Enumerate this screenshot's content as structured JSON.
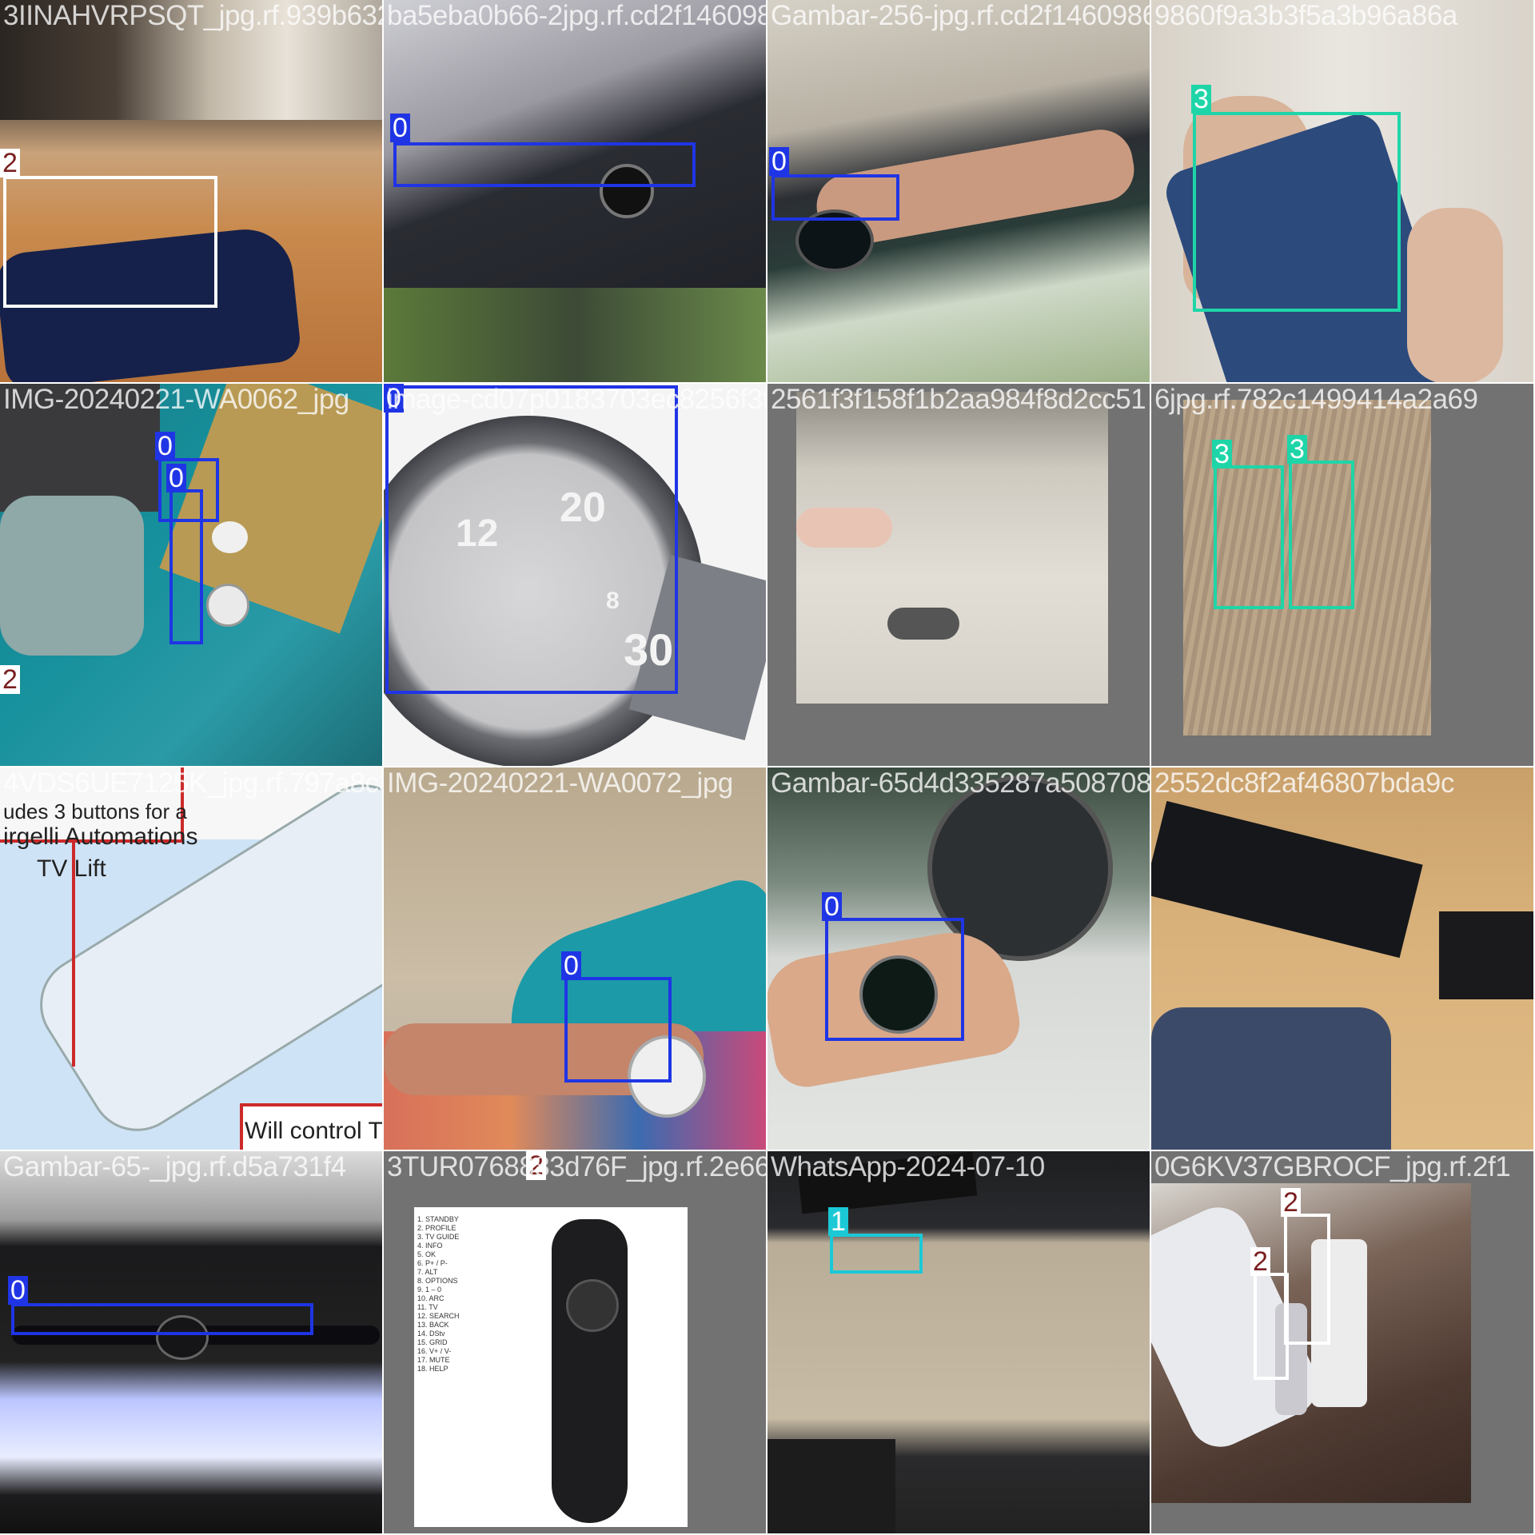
{
  "class_colors": {
    "0": "#1f35e5",
    "1": "#1bc9d6",
    "2": "#ffffff",
    "3": "#1ed5a8"
  },
  "tiles": [
    {
      "filename": "3IINAHVRPSQT_jpg.rf.939b632e81593c2a89af078bd7ab62ae",
      "labels": [
        {
          "class": "2"
        }
      ],
      "scene": "blurred-table-with-blue-remote"
    },
    {
      "filename": "ba5eba0b66-2jpg.rf.cd2f14609860f9a3b3f5a3b96a86a",
      "labels": [
        {
          "class": "0"
        }
      ],
      "scene": "watch-on-dark-table"
    },
    {
      "filename": "Gambar-256-jpg.rf.cd2f14609860f9a3b3f5a3b96a86a",
      "labels": [
        {
          "class": "0"
        }
      ],
      "scene": "watch-on-wrist"
    },
    {
      "filename": "9860f9a3b3f5a3b96a86a",
      "labels": [
        {
          "class": "3"
        }
      ],
      "scene": "person-holding-blue-phone"
    },
    {
      "filename": "IMG-20240221-WA0062_jpg",
      "labels": [
        {
          "class": "0"
        },
        {
          "class": "0"
        },
        {
          "class": "2"
        }
      ],
      "scene": "watches-on-teal-fabric"
    },
    {
      "filename": "image-cd07p0183703ec8256f3f1581b2aa9",
      "labels": [
        {
          "class": "0"
        }
      ],
      "dial_numbers": [
        "12",
        "20",
        "30",
        "8"
      ],
      "scene": "silver-chronograph-watch"
    },
    {
      "filename": "2561f3f158f1b2aa984f8d2cc51",
      "labels": [],
      "scene": "hand-holding-glasses"
    },
    {
      "filename": "6jpg.rf.782c1499414a2a69",
      "labels": [
        {
          "class": "3"
        },
        {
          "class": "3"
        }
      ],
      "scene": "two-phones-on-fabric"
    },
    {
      "filename": "4VDS6UE7125K_jpg.rf.797a8c3124024905216947A0072",
      "labels": [],
      "overlay_text": [
        "udes 3 buttons for a",
        "irgelli Automations",
        "TV Lift",
        "Will control TV"
      ],
      "scene": "remote-diagram"
    },
    {
      "filename": "IMG-20240221-WA0072_jpg",
      "labels": [
        {
          "class": "0"
        }
      ],
      "scene": "white-watch-on-wrist"
    },
    {
      "filename": "Gambar-65d4d335287a508708df2552dc8f2af46807bda9c",
      "labels": [
        {
          "class": "0"
        }
      ],
      "scene": "watch-on-palm-with-fan"
    },
    {
      "filename": "2552dc8f2af46807bda9c",
      "labels": [],
      "scene": "desk-with-keyboard"
    },
    {
      "filename": "Gambar-65-_jpg.rf.d5a731f4",
      "labels": [
        {
          "class": "0"
        }
      ],
      "scene": "watch-on-lit-keyboard"
    },
    {
      "filename": "3TUR0768883d76F_jpg.rf.2e66",
      "labels": [
        {
          "class": "2"
        }
      ],
      "legend": [
        "STANDBY",
        "PROFILE",
        "TV GUIDE",
        "INFO",
        "OK",
        "P+ / P-",
        "ALT",
        "OPTIONS",
        "1 – 0",
        "ARC",
        "TV",
        "SEARCH",
        "BACK",
        "DStv",
        "GRID",
        "V+ / V-",
        "MUTE",
        "HELP"
      ],
      "scene": "remote-with-numbered-callouts"
    },
    {
      "filename": "WhatsApp-2024-07-10",
      "labels": [
        {
          "class": "1"
        }
      ],
      "scene": "glasses-on-desk"
    },
    {
      "filename": "0G6KV37GBROCF_jpg.rf.2f1",
      "labels": [
        {
          "class": "2"
        },
        {
          "class": "2"
        }
      ],
      "scene": "remotes-on-couch"
    }
  ]
}
